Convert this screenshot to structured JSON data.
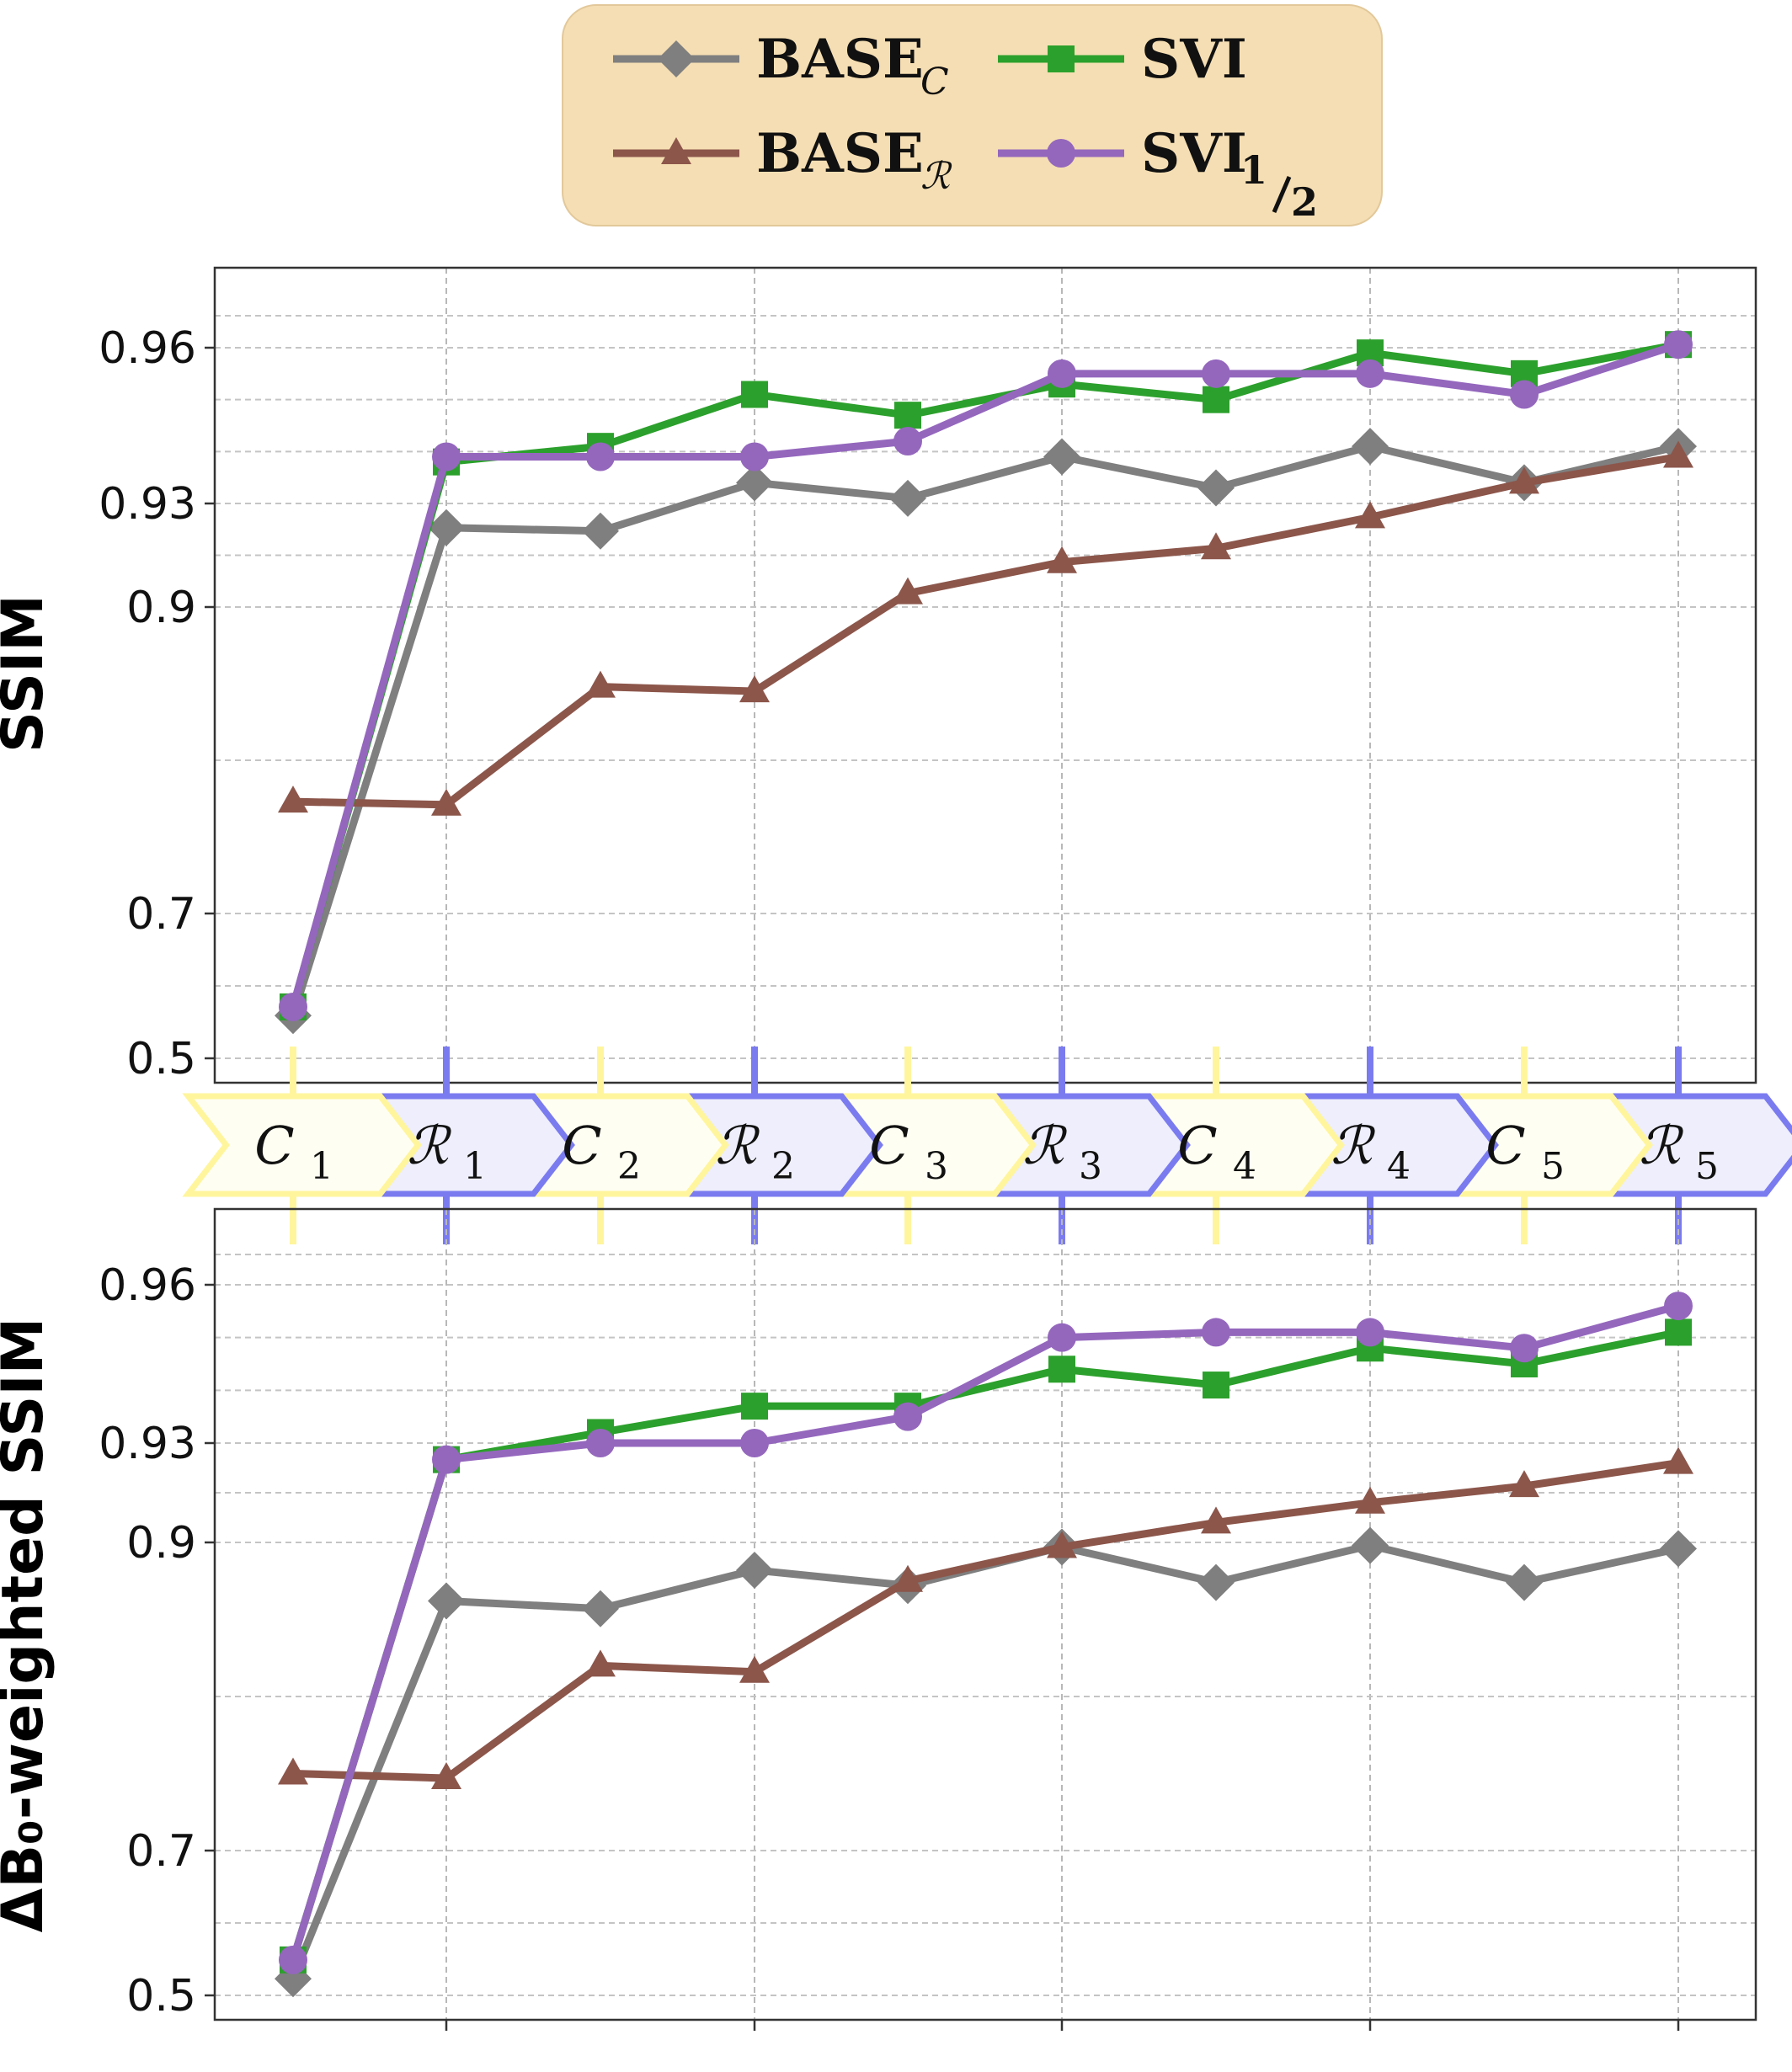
{
  "legend": {
    "items": [
      {
        "base": "BASE",
        "sub": "C",
        "sub_style": "italic",
        "color": "#7f7f7f",
        "marker": "diamond"
      },
      {
        "base": "SVI",
        "sub": "",
        "sub_style": "",
        "color": "#2ca02c",
        "marker": "square"
      },
      {
        "base": "BASE",
        "sub": "ℛ",
        "sub_style": "script",
        "color": "#8c564b",
        "marker": "triangle"
      },
      {
        "base": "SVI",
        "sub": "1/2",
        "sub_style": "fraction",
        "color": "#9467bd",
        "marker": "circle"
      }
    ],
    "background": "#f5deb3"
  },
  "stages": [
    {
      "letter": "C",
      "index": "1",
      "kind": "clean"
    },
    {
      "letter": "ℛ",
      "index": "1",
      "kind": "real"
    },
    {
      "letter": "C",
      "index": "2",
      "kind": "clean"
    },
    {
      "letter": "ℛ",
      "index": "2",
      "kind": "real"
    },
    {
      "letter": "C",
      "index": "3",
      "kind": "clean"
    },
    {
      "letter": "ℛ",
      "index": "3",
      "kind": "real"
    },
    {
      "letter": "C",
      "index": "4",
      "kind": "clean"
    },
    {
      "letter": "ℛ",
      "index": "4",
      "kind": "real"
    },
    {
      "letter": "C",
      "index": "5",
      "kind": "clean"
    },
    {
      "letter": "ℛ",
      "index": "5",
      "kind": "real"
    }
  ],
  "stage_colors": {
    "clean_fill": "#fffef2",
    "clean_stroke": "#fff59d",
    "real_fill": "#eeeefc",
    "real_stroke": "#7b7bf0"
  },
  "chart_data": [
    {
      "type": "line",
      "ylabel": "SSIM",
      "xlabel": "",
      "yscale": "nonlinear",
      "yticks": [
        "0.5",
        "0.7",
        "0.9",
        "0.93",
        "0.96"
      ],
      "grid": true,
      "x": [
        1,
        2,
        3,
        4,
        5,
        6,
        7,
        8,
        9,
        10
      ],
      "series": [
        {
          "name": "BASE_C",
          "color": "#7f7f7f",
          "marker": "diamond",
          "values": [
            0.559,
            0.923,
            0.922,
            0.934,
            0.931,
            0.939,
            0.933,
            0.941,
            0.934,
            0.941
          ]
        },
        {
          "name": "BASE_R",
          "color": "#8c564b",
          "marker": "triangle",
          "values": [
            0.773,
            0.771,
            0.848,
            0.845,
            0.904,
            0.913,
            0.917,
            0.926,
            0.934,
            0.939
          ]
        },
        {
          "name": "SVI",
          "color": "#2ca02c",
          "marker": "square",
          "values": [
            0.571,
            0.938,
            0.941,
            0.951,
            0.947,
            0.953,
            0.95,
            0.959,
            0.955,
            0.961
          ]
        },
        {
          "name": "SVI_1/2",
          "color": "#9467bd",
          "marker": "circle",
          "values": [
            0.571,
            0.939,
            0.939,
            0.939,
            0.942,
            0.955,
            0.955,
            0.955,
            0.951,
            0.961
          ]
        }
      ]
    },
    {
      "type": "line",
      "ylabel": "ΔB₀-weighted SSIM",
      "xlabel": "",
      "yscale": "nonlinear",
      "yticks": [
        "0.5",
        "0.7",
        "0.9",
        "0.93",
        "0.96"
      ],
      "grid": true,
      "x": [
        1,
        2,
        3,
        4,
        5,
        6,
        7,
        8,
        9,
        10
      ],
      "series": [
        {
          "name": "BASE_C",
          "color": "#7f7f7f",
          "marker": "diamond",
          "values": [
            0.523,
            0.862,
            0.857,
            0.882,
            0.872,
            0.897,
            0.874,
            0.898,
            0.874,
            0.896
          ]
        },
        {
          "name": "BASE_R",
          "color": "#8c564b",
          "marker": "triangle",
          "values": [
            0.75,
            0.747,
            0.82,
            0.816,
            0.875,
            0.897,
            0.906,
            0.912,
            0.917,
            0.924
          ]
        },
        {
          "name": "SVI",
          "color": "#2ca02c",
          "marker": "square",
          "values": [
            0.549,
            0.925,
            0.932,
            0.937,
            0.937,
            0.944,
            0.941,
            0.948,
            0.945,
            0.951
          ]
        },
        {
          "name": "SVI_1/2",
          "color": "#9467bd",
          "marker": "circle",
          "values": [
            0.549,
            0.925,
            0.93,
            0.93,
            0.935,
            0.95,
            0.951,
            0.951,
            0.948,
            0.956
          ]
        }
      ]
    }
  ]
}
